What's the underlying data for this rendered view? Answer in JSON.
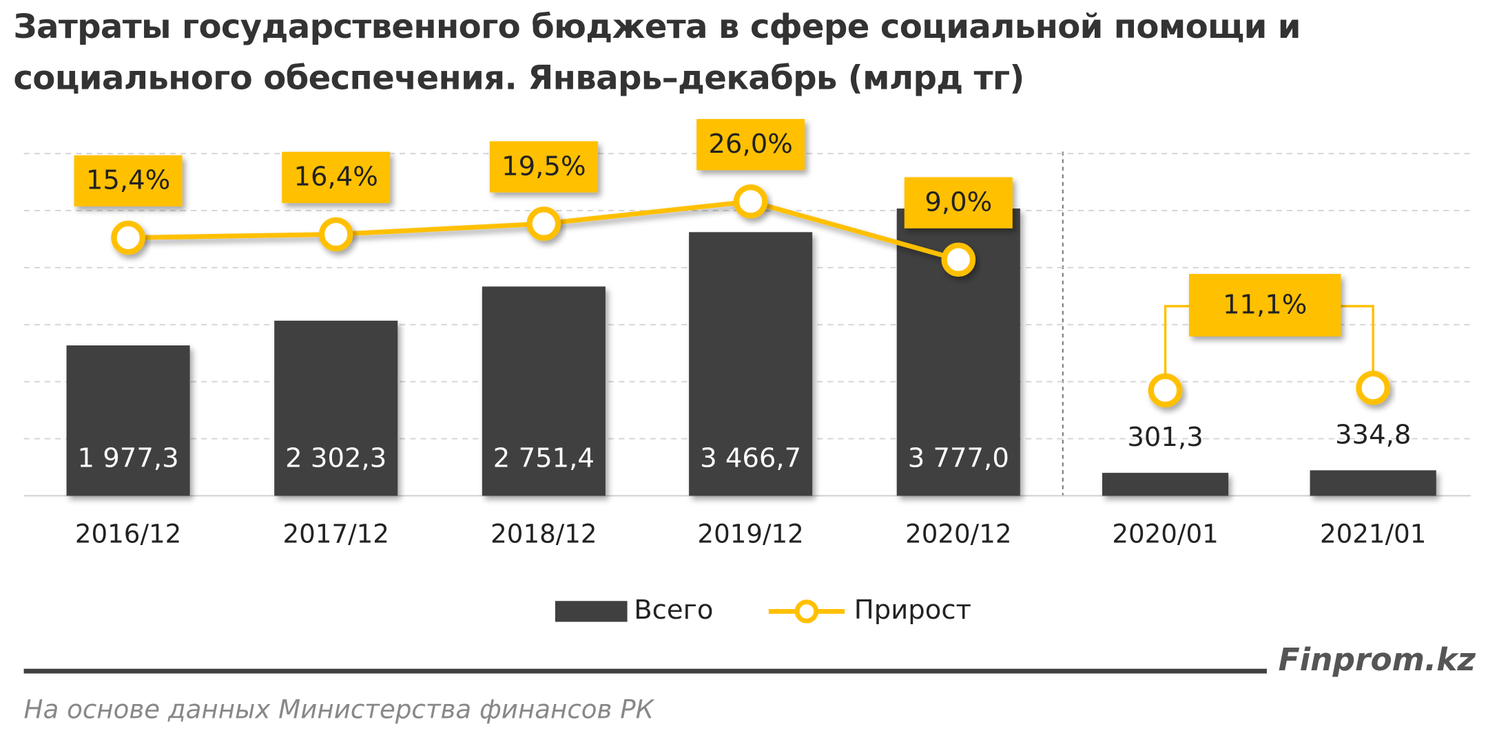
{
  "chart_data": {
    "type": "bar",
    "title": "Затраты государственного бюджета в сфере социальной помощи и социального обеспечения. Январь–декабрь (млрд тг)",
    "categories": [
      "2016/12",
      "2017/12",
      "2018/12",
      "2019/12",
      "2020/12",
      "2020/01",
      "2021/01"
    ],
    "series": [
      {
        "name": "Всего",
        "type": "bar",
        "color": "#404040",
        "values": [
          1977.3,
          2302.3,
          2751.4,
          3466.7,
          3777.0,
          301.3,
          334.8
        ],
        "value_labels": [
          "1 977,3",
          "2 302,3",
          "2 751,4",
          "3 466,7",
          "3 777,0",
          "301,3",
          "334,8"
        ]
      },
      {
        "name": "Прирост",
        "type": "line",
        "color": "#FFC000",
        "axis": "y2",
        "values": [
          15.4,
          16.4,
          19.5,
          26.0,
          9.0,
          null,
          null
        ],
        "value_labels": [
          "15,4%",
          "16,4%",
          "19,5%",
          "26,0%",
          "9,0%",
          null,
          null
        ]
      }
    ],
    "bracket": {
      "value": 11.1,
      "label": "11,1%"
    },
    "ylim": [
      0,
      4500
    ],
    "yticks": [
      0,
      750,
      1500,
      2250,
      3000,
      3750,
      4500
    ],
    "y2lim": [
      -60,
      40
    ],
    "grid": true,
    "legend": "bottom"
  },
  "source": "На основе данных Министерства финансов РК",
  "brand": "Finprom.kz"
}
